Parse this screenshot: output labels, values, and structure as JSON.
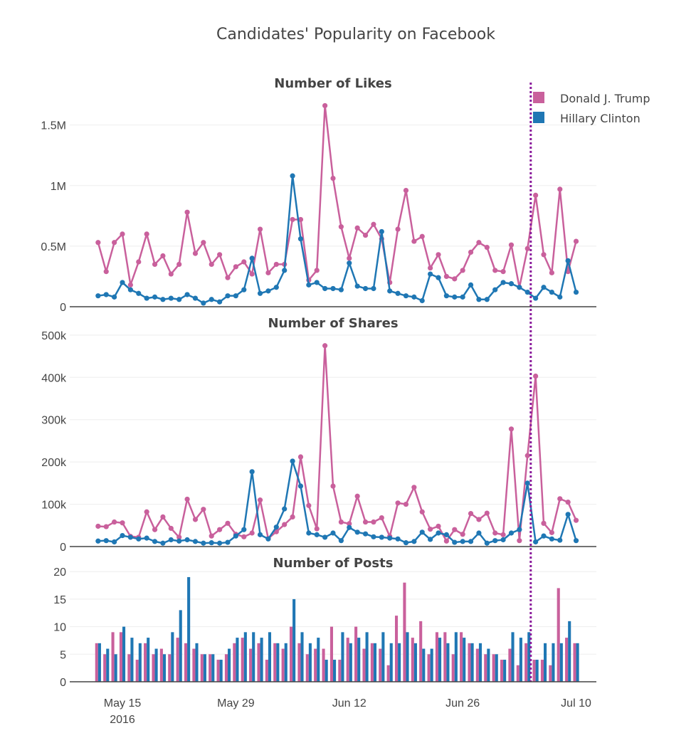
{
  "chart_data": {
    "type": "line",
    "title": "Candidates' Popularity on Facebook",
    "colors": {
      "trump": "#c9609c",
      "clinton": "#1f77b4",
      "marker": "#8b1c9c"
    },
    "legend": {
      "placement": "top-right",
      "entries": [
        "Donald J. Trump",
        "Hillary Clinton"
      ]
    },
    "x_axis": {
      "start_date": "2016-05-12",
      "day_range": [
        -3.5,
        61.5
      ],
      "ticks": [
        {
          "day": 3,
          "label": "May 15",
          "sublabel": "2016"
        },
        {
          "day": 17,
          "label": "May 29",
          "sublabel": ""
        },
        {
          "day": 31,
          "label": "Jun 12",
          "sublabel": ""
        },
        {
          "day": 45,
          "label": "Jun 26",
          "sublabel": ""
        },
        {
          "day": 59,
          "label": "Jul 10",
          "sublabel": ""
        }
      ],
      "marker_day": 53.4
    },
    "panels": [
      {
        "title": "Number of Likes",
        "type": "line",
        "ylim": [
          0,
          1780000
        ],
        "yticks": [
          {
            "value": 0,
            "label": "0"
          },
          {
            "value": 500000,
            "label": "0.5M"
          },
          {
            "value": 1000000,
            "label": "1M"
          },
          {
            "value": 1500000,
            "label": "1.5M"
          }
        ],
        "series": [
          {
            "name": "Donald J. Trump",
            "key": "trump",
            "values": [
              530000,
              290000,
              530000,
              600000,
              180000,
              370000,
              600000,
              350000,
              420000,
              270000,
              350000,
              780000,
              440000,
              530000,
              350000,
              430000,
              240000,
              330000,
              370000,
              270000,
              640000,
              280000,
              350000,
              350000,
              720000,
              720000,
              220000,
              300000,
              1660000,
              1060000,
              660000,
              400000,
              650000,
              590000,
              680000,
              560000,
              200000,
              640000,
              960000,
              540000,
              580000,
              320000,
              430000,
              250000,
              230000,
              300000,
              450000,
              530000,
              490000,
              300000,
              290000,
              510000,
              160000,
              480000,
              920000,
              430000,
              280000,
              970000,
              290000,
              540000
            ]
          },
          {
            "name": "Hillary Clinton",
            "key": "clinton",
            "values": [
              90000,
              100000,
              80000,
              200000,
              140000,
              110000,
              70000,
              80000,
              60000,
              70000,
              60000,
              100000,
              70000,
              30000,
              60000,
              40000,
              90000,
              90000,
              140000,
              400000,
              110000,
              130000,
              160000,
              300000,
              1080000,
              560000,
              180000,
              200000,
              150000,
              150000,
              140000,
              360000,
              170000,
              150000,
              150000,
              620000,
              130000,
              110000,
              90000,
              80000,
              50000,
              270000,
              240000,
              90000,
              80000,
              80000,
              180000,
              60000,
              60000,
              140000,
              200000,
              190000,
              160000,
              120000,
              70000,
              160000,
              120000,
              80000,
              380000,
              120000
            ]
          }
        ]
      },
      {
        "title": "Number of Shares",
        "type": "line",
        "ylim": [
          0,
          520000
        ],
        "yticks": [
          {
            "value": 0,
            "label": "0"
          },
          {
            "value": 100000,
            "label": "100k"
          },
          {
            "value": 200000,
            "label": "200k"
          },
          {
            "value": 300000,
            "label": "300k"
          },
          {
            "value": 400000,
            "label": "400k"
          },
          {
            "value": 500000,
            "label": "500k"
          }
        ],
        "series": [
          {
            "name": "Donald J. Trump",
            "key": "trump",
            "values": [
              48000,
              47000,
              58000,
              56000,
              24000,
              22000,
              82000,
              40000,
              70000,
              43000,
              22000,
              112000,
              64000,
              88000,
              25000,
              40000,
              55000,
              29000,
              23000,
              32000,
              110000,
              19000,
              35000,
              52000,
              70000,
              212000,
              97000,
              42000,
              475000,
              143000,
              58000,
              54000,
              119000,
              58000,
              58000,
              68000,
              24000,
              103000,
              100000,
              140000,
              82000,
              41000,
              48000,
              13000,
              40000,
              29000,
              78000,
              64000,
              79000,
              32000,
              28000,
              278000,
              14000,
              215000,
              403000,
              55000,
              33000,
              113000,
              105000,
              62000
            ]
          },
          {
            "name": "Hillary Clinton",
            "key": "clinton",
            "values": [
              13000,
              14000,
              11000,
              26000,
              22000,
              18000,
              20000,
              12000,
              8000,
              16000,
              13000,
              16000,
              12000,
              8000,
              9000,
              8000,
              10000,
              25000,
              40000,
              177000,
              28000,
              18000,
              46000,
              89000,
              202000,
              143000,
              32000,
              28000,
              22000,
              32000,
              14000,
              45000,
              34000,
              30000,
              23000,
              22000,
              20000,
              18000,
              9000,
              12000,
              34000,
              17000,
              32000,
              28000,
              10000,
              12000,
              12000,
              32000,
              8000,
              14000,
              16000,
              32000,
              40000,
              150000,
              11000,
              25000,
              18000,
              15000,
              76000,
              14000
            ]
          }
        ]
      },
      {
        "title": "Number of Posts",
        "type": "bar",
        "ylim": [
          0,
          20.8
        ],
        "yticks": [
          {
            "value": 0,
            "label": "0"
          },
          {
            "value": 5,
            "label": "5"
          },
          {
            "value": 10,
            "label": "10"
          },
          {
            "value": 15,
            "label": "15"
          },
          {
            "value": 20,
            "label": "20"
          }
        ],
        "series": [
          {
            "name": "Donald J. Trump",
            "key": "trump",
            "values": [
              7,
              5,
              9,
              9,
              5,
              4,
              7,
              5,
              6,
              5,
              8,
              7,
              6,
              5,
              5,
              4,
              5,
              7,
              8,
              6,
              7,
              4,
              7,
              6,
              10,
              7,
              5,
              6,
              6,
              10,
              4,
              8,
              10,
              6,
              7,
              6,
              3,
              12,
              18,
              8,
              11,
              5,
              9,
              9,
              5,
              9,
              7,
              6,
              5,
              5,
              4,
              6,
              3,
              7,
              4,
              4,
              3,
              17,
              8,
              7
            ]
          },
          {
            "name": "Hillary Clinton",
            "key": "clinton",
            "values": [
              7,
              6,
              5,
              10,
              8,
              7,
              8,
              6,
              5,
              9,
              13,
              19,
              7,
              5,
              5,
              4,
              6,
              8,
              9,
              9,
              8,
              9,
              7,
              7,
              15,
              9,
              7,
              8,
              4,
              4,
              9,
              7,
              8,
              9,
              7,
              9,
              7,
              7,
              9,
              7,
              6,
              6,
              8,
              7,
              9,
              8,
              7,
              7,
              6,
              5,
              4,
              9,
              8,
              9,
              4,
              7,
              7,
              7,
              11,
              7
            ]
          }
        ]
      }
    ]
  }
}
